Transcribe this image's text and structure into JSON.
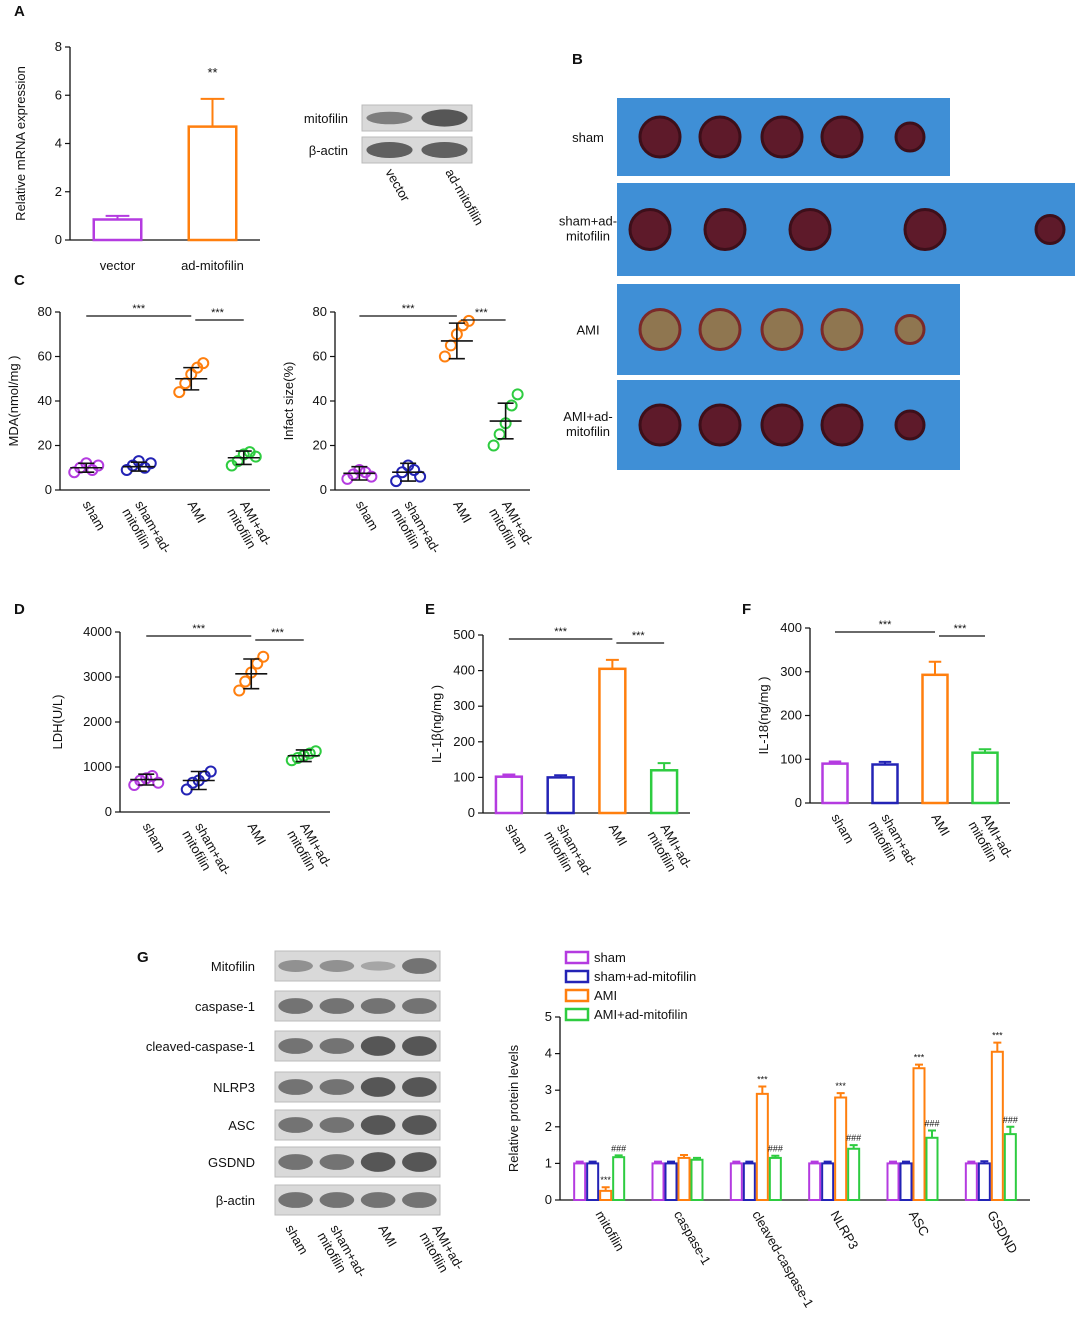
{
  "chart_data": [
    {
      "type": "bar",
      "panel": "A",
      "ylabel": "Relative mRNA expression",
      "categories": [
        "vector",
        "ad-mitofilin"
      ],
      "values": [
        0.85,
        4.7
      ],
      "errors": [
        0.15,
        1.15
      ],
      "colors": [
        "#b43be0",
        "#ff7f0e"
      ],
      "annotations": [
        null,
        "**"
      ],
      "ylim": [
        0,
        8
      ],
      "yticks": [
        0,
        2,
        4,
        6,
        8
      ]
    },
    {
      "type": "dot",
      "panel": "C",
      "ylabel": "MDA(nmol/mg )",
      "categories": [
        "sham",
        "sham+ad-mitofilin",
        "AMI",
        "AMI+ad-mitofilin"
      ],
      "points": [
        [
          8,
          10,
          12,
          9,
          11
        ],
        [
          9,
          11,
          13,
          10,
          12
        ],
        [
          44,
          48,
          52,
          55,
          57
        ],
        [
          11,
          13,
          16,
          17,
          15
        ]
      ],
      "means": [
        10,
        10.5,
        50,
        14.5
      ],
      "sds": [
        2,
        2,
        5,
        3
      ],
      "colors": [
        "#b43be0",
        "#2323b5",
        "#ff7f0e",
        "#2ecc40"
      ],
      "brackets": [
        {
          "from": 0,
          "to": 2,
          "label": "***"
        },
        {
          "from": 2,
          "to": 3,
          "label": "***"
        }
      ],
      "ylim": [
        0,
        80
      ],
      "yticks": [
        0,
        20,
        40,
        60,
        80
      ]
    },
    {
      "type": "dot",
      "ylabel": "Infact size(%)",
      "categories": [
        "sham",
        "sham+ad-mitofilin",
        "AMI",
        "AMI+ad-mitofilin"
      ],
      "points": [
        [
          5,
          7,
          9,
          8,
          6
        ],
        [
          4,
          8,
          11,
          9,
          6
        ],
        [
          60,
          65,
          70,
          74,
          76
        ],
        [
          20,
          25,
          30,
          38,
          43
        ]
      ],
      "means": [
        7.5,
        8,
        67,
        31
      ],
      "sds": [
        3,
        4,
        8,
        8
      ],
      "colors": [
        "#b43be0",
        "#2323b5",
        "#ff7f0e",
        "#2ecc40"
      ],
      "brackets": [
        {
          "from": 0,
          "to": 2,
          "label": "***"
        },
        {
          "from": 2,
          "to": 3,
          "label": "***"
        }
      ],
      "ylim": [
        0,
        80
      ],
      "yticks": [
        0,
        20,
        40,
        60,
        80
      ]
    },
    {
      "type": "dot",
      "panel": "D",
      "ylabel": "LDH(U/L)",
      "categories": [
        "sham",
        "sham+ad-mitofilin",
        "AMI",
        "AMI+ad-mitofilin"
      ],
      "points": [
        [
          600,
          700,
          750,
          800,
          650
        ],
        [
          500,
          650,
          700,
          800,
          900
        ],
        [
          2700,
          2900,
          3100,
          3300,
          3450
        ],
        [
          1150,
          1200,
          1250,
          1300,
          1350
        ]
      ],
      "means": [
        720,
        700,
        3070,
        1250
      ],
      "sds": [
        120,
        200,
        330,
        130
      ],
      "colors": [
        "#b43be0",
        "#2323b5",
        "#ff7f0e",
        "#2ecc40"
      ],
      "brackets": [
        {
          "from": 0,
          "to": 2,
          "label": "***"
        },
        {
          "from": 2,
          "to": 3,
          "label": "***"
        }
      ],
      "ylim": [
        0,
        4000
      ],
      "yticks": [
        0,
        1000,
        2000,
        3000,
        4000
      ]
    },
    {
      "type": "bar",
      "panel": "E",
      "ylabel": "IL-1β(ng/mg )",
      "categories": [
        "sham",
        "sham+ad-mitofilin",
        "AMI",
        "AMI+ad-mitofilin"
      ],
      "values": [
        102,
        100,
        405,
        120
      ],
      "errors": [
        6,
        6,
        25,
        20
      ],
      "colors": [
        "#b43be0",
        "#2323b5",
        "#ff7f0e",
        "#2ecc40"
      ],
      "brackets": [
        {
          "from": 0,
          "to": 2,
          "label": "***"
        },
        {
          "from": 2,
          "to": 3,
          "label": "***"
        }
      ],
      "ylim": [
        0,
        500
      ],
      "yticks": [
        0,
        100,
        200,
        300,
        400,
        500
      ]
    },
    {
      "type": "bar",
      "panel": "F",
      "ylabel": "IL-18(ng/mg )",
      "categories": [
        "sham",
        "sham+ad-mitofilin",
        "AMI",
        "AMI+ad-mitofilin"
      ],
      "values": [
        90,
        88,
        293,
        115
      ],
      "errors": [
        5,
        6,
        30,
        8
      ],
      "colors": [
        "#b43be0",
        "#2323b5",
        "#ff7f0e",
        "#2ecc40"
      ],
      "brackets": [
        {
          "from": 0,
          "to": 2,
          "label": "***"
        },
        {
          "from": 2,
          "to": 3,
          "label": "***"
        }
      ],
      "ylim": [
        0,
        400
      ],
      "yticks": [
        0,
        100,
        200,
        300,
        400
      ]
    },
    {
      "type": "grouped",
      "ylabel": "Relative protein levels",
      "categories": [
        "mitofilin",
        "caspase-1",
        "cleaved-caspase-1",
        "NLRP3",
        "ASC",
        "GSDND"
      ],
      "series": [
        {
          "name": "sham",
          "color": "#b43be0",
          "values": [
            1,
            1,
            1,
            1,
            1,
            1
          ],
          "errors": [
            0.05,
            0.05,
            0.05,
            0.05,
            0.05,
            0.05
          ],
          "annotations": [
            null,
            null,
            null,
            null,
            null,
            null
          ]
        },
        {
          "name": "sham+ad-mitofilin",
          "color": "#2323b5",
          "values": [
            1,
            1,
            1,
            1,
            1,
            1
          ],
          "errors": [
            0.05,
            0.05,
            0.05,
            0.05,
            0.05,
            0.06
          ],
          "annotations": [
            null,
            null,
            null,
            null,
            null,
            null
          ]
        },
        {
          "name": "AMI",
          "color": "#ff7f0e",
          "values": [
            0.25,
            1.15,
            2.9,
            2.8,
            3.6,
            4.05
          ],
          "errors": [
            0.1,
            0.08,
            0.2,
            0.12,
            0.1,
            0.25
          ],
          "annotations": [
            "***",
            null,
            "***",
            "***",
            "***",
            "***"
          ]
        },
        {
          "name": "AMI+ad-mitofilin",
          "color": "#2ecc40",
          "values": [
            1.17,
            1.1,
            1.15,
            1.4,
            1.7,
            1.8
          ],
          "errors": [
            0.05,
            0.05,
            0.06,
            0.1,
            0.2,
            0.2
          ],
          "annotations": [
            "###",
            null,
            "###",
            "###",
            "###",
            "###"
          ]
        }
      ],
      "ylim": [
        0,
        5
      ],
      "yticks": [
        0,
        1,
        2,
        3,
        4,
        5
      ]
    }
  ],
  "blot_a": {
    "rows": [
      "mitofilin",
      "β-actin"
    ],
    "columns": [
      "vector",
      "ad-mitofilin"
    ]
  },
  "photos": {
    "panel": "B",
    "rows": [
      "sham",
      "sham+ad-mitofilin",
      "AMI",
      "AMI+ad-mitofilin"
    ]
  },
  "blot_g": {
    "panel": "G",
    "rows": [
      "Mitofilin",
      "caspase-1",
      "cleaved-caspase-1",
      "NLRP3",
      "ASC",
      "GSDND",
      "β-actin"
    ],
    "columns": [
      "sham",
      "sham+ad-mitofilin",
      "AMI",
      "AMI+ad-mitofilin"
    ]
  }
}
